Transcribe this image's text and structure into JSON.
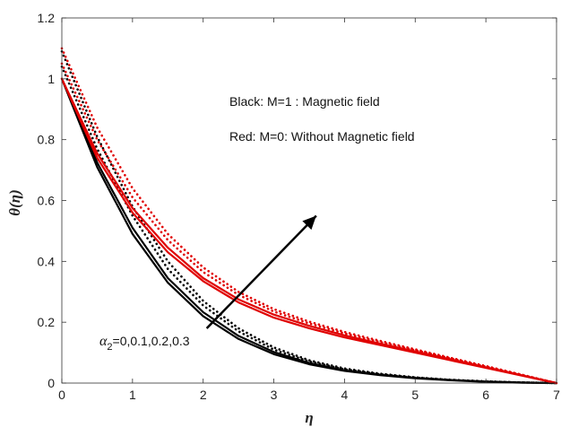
{
  "chart_data": {
    "type": "line",
    "xlabel": "η",
    "ylabel": "θ(η)",
    "xlim": [
      0,
      7
    ],
    "ylim": [
      0,
      1.2
    ],
    "xticks": [
      "0",
      "1",
      "2",
      "3",
      "4",
      "5",
      "6",
      "7"
    ],
    "yticks": [
      "0",
      "0.2",
      "0.4",
      "0.6",
      "0.8",
      "1",
      "1.2"
    ],
    "grid": false,
    "annotations": {
      "legend_black": "Black: M=1 :   Magnetic field",
      "legend_red": "Red:   M=0:   Without Magnetic field",
      "param_symbol": "α",
      "param_subscript": "2",
      "param_values": "=0,0.1,0.2,0.3"
    },
    "colors": {
      "black": "#000000",
      "red": "#e00000",
      "axis": "#333333"
    },
    "x": [
      0,
      0.5,
      1,
      1.5,
      2,
      2.5,
      3,
      3.5,
      4,
      4.5,
      5,
      5.5,
      6,
      6.5,
      7
    ],
    "series": [
      {
        "name": "M=1, α2=0",
        "color": "black",
        "style": "solid",
        "values": [
          1.0,
          0.71,
          0.49,
          0.33,
          0.22,
          0.145,
          0.095,
          0.062,
          0.04,
          0.026,
          0.016,
          0.009,
          0.004,
          0.001,
          0
        ]
      },
      {
        "name": "M=1, α2=0.1",
        "color": "black",
        "style": "solid",
        "values": [
          1.0,
          0.725,
          0.51,
          0.345,
          0.233,
          0.155,
          0.102,
          0.066,
          0.042,
          0.027,
          0.017,
          0.01,
          0.005,
          0.002,
          0
        ]
      },
      {
        "name": "M=1, α2=0.2",
        "color": "black",
        "style": "dotted",
        "values": [
          1.04,
          0.77,
          0.55,
          0.375,
          0.255,
          0.17,
          0.11,
          0.071,
          0.045,
          0.029,
          0.018,
          0.01,
          0.005,
          0.002,
          0
        ]
      },
      {
        "name": "M=1, α2=0.3",
        "color": "black",
        "style": "dotted",
        "values": [
          1.09,
          0.81,
          0.58,
          0.4,
          0.27,
          0.18,
          0.117,
          0.075,
          0.048,
          0.031,
          0.019,
          0.011,
          0.006,
          0.002,
          0
        ]
      },
      {
        "name": "M=0, α2=0",
        "color": "red",
        "style": "solid",
        "values": [
          1.0,
          0.74,
          0.56,
          0.43,
          0.335,
          0.265,
          0.215,
          0.18,
          0.15,
          0.125,
          0.1,
          0.075,
          0.05,
          0.025,
          0
        ]
      },
      {
        "name": "M=0, α2=0.1",
        "color": "red",
        "style": "solid",
        "values": [
          1.0,
          0.755,
          0.575,
          0.445,
          0.345,
          0.275,
          0.225,
          0.188,
          0.157,
          0.13,
          0.104,
          0.078,
          0.052,
          0.026,
          0
        ]
      },
      {
        "name": "M=0, α2=0.2",
        "color": "red",
        "style": "dotted",
        "values": [
          1.05,
          0.8,
          0.61,
          0.47,
          0.365,
          0.29,
          0.235,
          0.196,
          0.163,
          0.135,
          0.108,
          0.081,
          0.054,
          0.027,
          0
        ]
      },
      {
        "name": "M=0, α2=0.3",
        "color": "red",
        "style": "dotted",
        "values": [
          1.1,
          0.84,
          0.64,
          0.49,
          0.38,
          0.3,
          0.243,
          0.202,
          0.168,
          0.139,
          0.111,
          0.083,
          0.056,
          0.028,
          0
        ]
      }
    ],
    "arrow": {
      "from": [
        2.05,
        0.18
      ],
      "to": [
        3.6,
        0.55
      ]
    }
  }
}
